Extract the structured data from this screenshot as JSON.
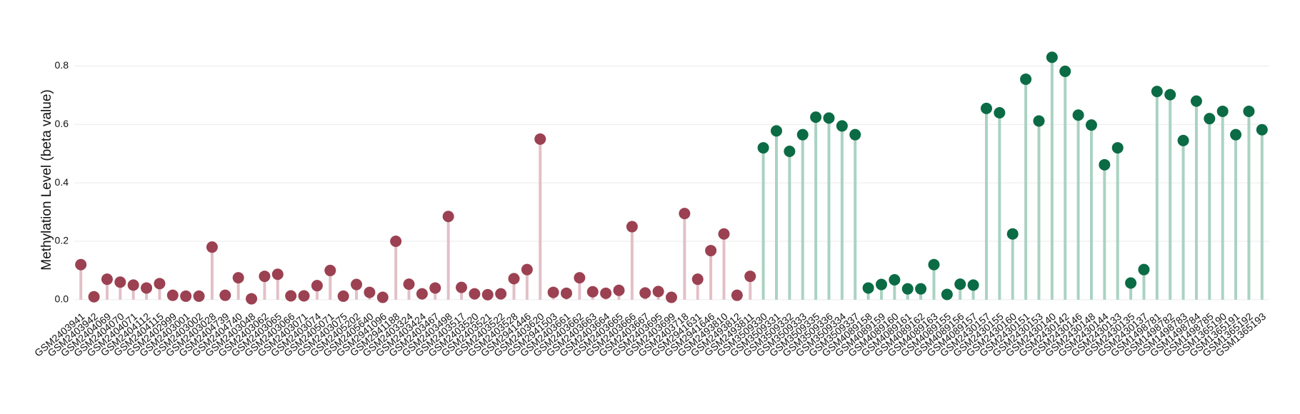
{
  "chart_data": {
    "type": "lollipop",
    "y_label": "Methylation Level (beta value)",
    "categories": [
      "GSM2403941",
      "GSM2403942",
      "GSM2404069",
      "GSM2404070",
      "GSM2404071",
      "GSM2404112",
      "GSM2404115",
      "GSM2402999",
      "GSM2403001",
      "GSM2403002",
      "GSM2403028",
      "GSM2404739",
      "GSM2404740",
      "GSM2403048",
      "GSM2403062",
      "GSM2403065",
      "GSM2403066",
      "GSM2403071",
      "GSM2403074",
      "GSM2405071",
      "GSM2403075",
      "GSM2405202",
      "GSM2405640",
      "GSM2941096",
      "GSM2941188",
      "GSM2403324",
      "GSM2403424",
      "GSM2403467",
      "GSM2403498",
      "GSM2403517",
      "GSM2403520",
      "GSM2403521",
      "GSM2403522",
      "GSM2403528",
      "GSM2941446",
      "GSM2403620",
      "GSM2941503",
      "GSM2403661",
      "GSM2403662",
      "GSM2403663",
      "GSM2403664",
      "GSM2403665",
      "GSM2403666",
      "GSM2403667",
      "GSM2403695",
      "GSM2403699",
      "GSM2403718",
      "GSM2941631",
      "GSM2941646",
      "GSM2493810",
      "GSM2493812",
      "GSM2493811",
      "GSM3509330",
      "GSM3509331",
      "GSM3509332",
      "GSM3509333",
      "GSM3509335",
      "GSM3509336",
      "GSM3509334",
      "GSM3509337",
      "GSM4089158",
      "GSM4089159",
      "GSM4089160",
      "GSM4089161",
      "GSM4089162",
      "GSM4089163",
      "GSM4089155",
      "GSM4089156",
      "GSM4089157",
      "GSM2430157",
      "GSM2430155",
      "GSM2430160",
      "GSM2430151",
      "GSM2430153",
      "GSM2430140",
      "GSM2430142",
      "GSM2430146",
      "GSM2430148",
      "GSM2430144",
      "GSM2430133",
      "GSM2430135",
      "GSM2430137",
      "GSM1498781",
      "GSM1498782",
      "GSM1498783",
      "GSM1498784",
      "GSM1498785",
      "GSM1365190",
      "GSM1365191",
      "GSM1365192",
      "GSM1365193"
    ],
    "series": [
      {
        "color": "#9b4152",
        "stem_color": "#e2c0c8",
        "values": [
          0.12,
          0.01,
          0.07,
          0.06,
          0.05,
          0.04,
          0.055,
          0.015,
          0.012,
          0.012,
          0.18,
          0.015,
          0.075,
          0.003,
          0.08,
          0.087,
          0.013,
          0.013,
          0.048,
          0.1,
          0.012,
          0.052,
          0.025,
          0.008,
          0.2,
          0.053,
          0.02,
          0.04,
          0.285,
          0.042,
          0.02,
          0.017,
          0.02,
          0.072,
          0.103,
          0.55,
          0.025,
          0.022,
          0.075,
          0.027,
          0.022,
          0.032,
          0.25,
          0.023,
          0.028,
          0.008,
          0.295,
          0.07,
          0.168,
          0.225,
          0.015,
          0.08,
          null,
          null,
          null,
          null,
          null,
          null,
          null,
          null,
          null,
          null,
          null,
          null,
          null,
          null,
          null,
          null,
          null,
          null,
          null,
          null,
          null,
          null,
          null,
          null,
          null,
          null,
          null,
          null,
          null,
          null,
          null,
          null,
          null,
          null,
          null,
          null,
          null,
          null,
          null
        ]
      },
      {
        "color": "#0b6b45",
        "stem_color": "#aad2c2",
        "values": [
          null,
          null,
          null,
          null,
          null,
          null,
          null,
          null,
          null,
          null,
          null,
          null,
          null,
          null,
          null,
          null,
          null,
          null,
          null,
          null,
          null,
          null,
          null,
          null,
          null,
          null,
          null,
          null,
          null,
          null,
          null,
          null,
          null,
          null,
          null,
          null,
          null,
          null,
          null,
          null,
          null,
          null,
          null,
          null,
          null,
          null,
          null,
          null,
          null,
          null,
          null,
          null,
          0.52,
          0.578,
          0.508,
          0.565,
          0.625,
          0.622,
          0.595,
          0.565,
          0.04,
          0.052,
          0.068,
          0.037,
          0.037,
          0.12,
          0.018,
          0.053,
          0.05,
          0.655,
          0.64,
          0.225,
          0.755,
          0.612,
          0.83,
          0.782,
          0.632,
          0.598,
          0.462,
          0.52,
          0.057,
          0.103,
          0.713,
          0.702,
          0.545,
          0.68,
          0.62,
          0.645,
          0.565,
          0.645,
          0.582
        ]
      }
    ],
    "ylim": [
      -0.02,
      0.86
    ],
    "yticks": [
      0.0,
      0.2,
      0.4,
      0.6,
      0.8
    ],
    "grid": true
  }
}
